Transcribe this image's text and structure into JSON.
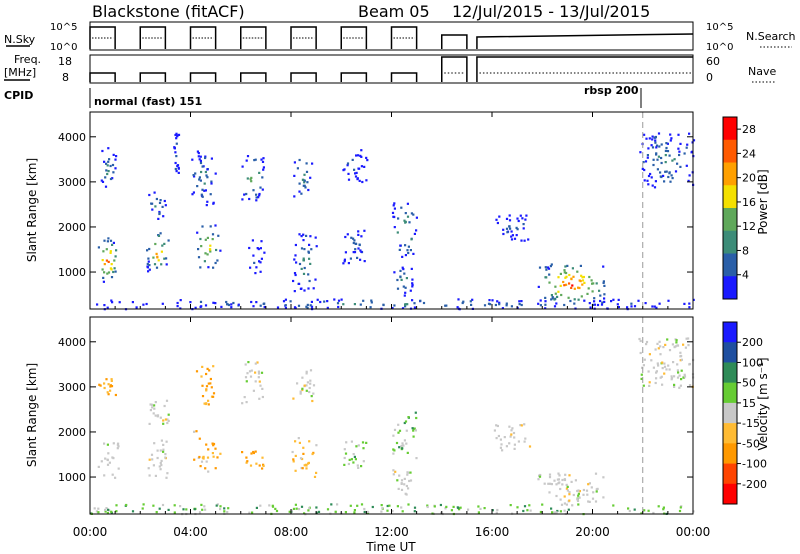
{
  "header": {
    "station": "Blackstone (fitACF)",
    "beam": "Beam 05",
    "dates": "12/Jul/2015 - 13/Jul/2015"
  },
  "top_panels": {
    "nsky_label": "N.Sky",
    "nsky_ticks": [
      "10^5",
      "10^0"
    ],
    "nsearch_label": "N.Search",
    "nsearch_ticks": [
      "10^5",
      "10^0"
    ],
    "freq_label_1": "Freq.",
    "freq_label_2": "[MHz]",
    "freq_ticks": [
      "18",
      "8"
    ],
    "nave_label": "Nave",
    "nave_ticks": [
      "60",
      "0"
    ],
    "cpid_label": "CPID",
    "cpid_mode_1": "normal (fast) 151",
    "cpid_mode_2": "rbsp 200"
  },
  "colors": {
    "power": [
      "#1a1aff",
      "#2a5fa8",
      "#3c8c78",
      "#5fa85a",
      "#f4e000",
      "#ffa000",
      "#ff5a00",
      "#ff0000"
    ],
    "velocity": [
      "#ff0000",
      "#ff4400",
      "#ff9900",
      "#ffbb33",
      "#c8c8c8",
      "#66cc33",
      "#2e8b57",
      "#1f4fa0",
      "#1a1aff"
    ],
    "grey_scatter": "#c8c8c8"
  },
  "chart_data": [
    {
      "type": "heatmap",
      "title": "",
      "xlabel": "",
      "ylabel": "Slant Range [km]",
      "xlim": [
        "00:00",
        "24:00"
      ],
      "ylim": [
        180,
        4550
      ],
      "yticks": [
        "1000",
        "2000",
        "3000",
        "4000"
      ],
      "colorbar": {
        "label": "Power [dB]",
        "ticks": [
          "4",
          "8",
          "12",
          "16",
          "20",
          "24",
          "28"
        ],
        "range": [
          0,
          30
        ]
      },
      "dashed_line_time": "22:00",
      "echo_regions": [
        {
          "t0": 0.2,
          "t1": 1.1,
          "r0": 800,
          "r1": 1800,
          "peak": 26
        },
        {
          "t0": 0.4,
          "t1": 1.0,
          "r0": 2800,
          "r1": 3800,
          "peak": 8
        },
        {
          "t0": 2.2,
          "t1": 3.1,
          "r0": 1000,
          "r1": 1900,
          "peak": 22
        },
        {
          "t0": 2.3,
          "t1": 3.0,
          "r0": 2200,
          "r1": 2800,
          "peak": 10
        },
        {
          "t0": 3.3,
          "t1": 3.5,
          "r0": 3100,
          "r1": 4100,
          "peak": 6
        },
        {
          "t0": 4.1,
          "t1": 5.2,
          "r0": 1100,
          "r1": 2100,
          "peak": 20
        },
        {
          "t0": 4.0,
          "t1": 5.0,
          "r0": 2500,
          "r1": 3700,
          "peak": 8
        },
        {
          "t0": 6.0,
          "t1": 6.9,
          "r0": 2600,
          "r1": 3600,
          "peak": 16
        },
        {
          "t0": 6.2,
          "t1": 6.9,
          "r0": 1000,
          "r1": 1800,
          "peak": 6
        },
        {
          "t0": 8.0,
          "t1": 8.8,
          "r0": 2700,
          "r1": 3600,
          "peak": 12
        },
        {
          "t0": 8.0,
          "t1": 9.0,
          "r0": 600,
          "r1": 1900,
          "peak": 10
        },
        {
          "t0": 10.0,
          "t1": 11.0,
          "r0": 1200,
          "r1": 2000,
          "peak": 6
        },
        {
          "t0": 10.0,
          "t1": 11.0,
          "r0": 3000,
          "r1": 3800,
          "peak": 4
        },
        {
          "t0": 12.0,
          "t1": 13.0,
          "r0": 1300,
          "r1": 2600,
          "peak": 12
        },
        {
          "t0": 12.0,
          "t1": 12.8,
          "r0": 500,
          "r1": 1200,
          "peak": 10
        },
        {
          "t0": 16.0,
          "t1": 17.5,
          "r0": 1700,
          "r1": 2300,
          "peak": 6
        },
        {
          "t0": 17.8,
          "t1": 20.5,
          "r0": 300,
          "r1": 1200,
          "peak": 28
        },
        {
          "t0": 21.8,
          "t1": 24.0,
          "r0": 2900,
          "r1": 4100,
          "peak": 10
        },
        {
          "t0": 0.0,
          "t1": 24.0,
          "r0": 200,
          "r1": 420,
          "peak": 8
        }
      ]
    },
    {
      "type": "heatmap",
      "title": "",
      "xlabel": "Time UT",
      "ylabel": "Slant Range [km]",
      "xlim": [
        "00:00",
        "24:00"
      ],
      "ylim": [
        180,
        4550
      ],
      "xticks": [
        "00:00",
        "04:00",
        "08:00",
        "12:00",
        "16:00",
        "20:00",
        "00:00"
      ],
      "yticks": [
        "1000",
        "2000",
        "3000",
        "4000"
      ],
      "colorbar": {
        "label": "Velocity [m s⁻¹]",
        "ticks": [
          "200",
          "100",
          "50",
          "15",
          "-15",
          "-50",
          "-100",
          "-200"
        ],
        "range": [
          -250,
          250
        ]
      },
      "dashed_line_time": "22:00",
      "echo_regions": [
        {
          "t0": 0.2,
          "t1": 1.1,
          "r0": 1000,
          "r1": 1800,
          "vel": 0
        },
        {
          "t0": 0.3,
          "t1": 1.0,
          "r0": 2800,
          "r1": 3300,
          "vel": -40
        },
        {
          "t0": 2.2,
          "t1": 3.1,
          "r0": 1000,
          "r1": 1900,
          "vel": 0
        },
        {
          "t0": 2.3,
          "t1": 3.1,
          "r0": 2200,
          "r1": 2800,
          "vel": 0
        },
        {
          "t0": 4.1,
          "t1": 5.2,
          "r0": 1100,
          "r1": 2100,
          "vel": -40
        },
        {
          "t0": 4.2,
          "t1": 5.0,
          "r0": 2500,
          "r1": 3500,
          "vel": -60
        },
        {
          "t0": 6.0,
          "t1": 6.9,
          "r0": 2600,
          "r1": 3600,
          "vel": 0
        },
        {
          "t0": 6.0,
          "t1": 6.9,
          "r0": 1200,
          "r1": 1700,
          "vel": -50
        },
        {
          "t0": 8.0,
          "t1": 9.0,
          "r0": 1000,
          "r1": 1900,
          "vel": -40
        },
        {
          "t0": 8.0,
          "t1": 8.9,
          "r0": 2700,
          "r1": 3400,
          "vel": 0
        },
        {
          "t0": 10.0,
          "t1": 11.0,
          "r0": 1200,
          "r1": 1900,
          "vel": 30
        },
        {
          "t0": 12.0,
          "t1": 13.0,
          "r0": 1400,
          "r1": 2500,
          "vel": 30
        },
        {
          "t0": 12.0,
          "t1": 12.9,
          "r0": 600,
          "r1": 1200,
          "vel": 0
        },
        {
          "t0": 16.0,
          "t1": 17.5,
          "r0": 1600,
          "r1": 2200,
          "vel": 0
        },
        {
          "t0": 17.8,
          "t1": 20.5,
          "r0": 400,
          "r1": 1100,
          "vel": 0
        },
        {
          "t0": 21.8,
          "t1": 24.0,
          "r0": 3000,
          "r1": 4100,
          "vel": 0
        },
        {
          "t0": 0.0,
          "t1": 24.0,
          "r0": 200,
          "r1": 420,
          "vel": 30
        }
      ]
    }
  ]
}
